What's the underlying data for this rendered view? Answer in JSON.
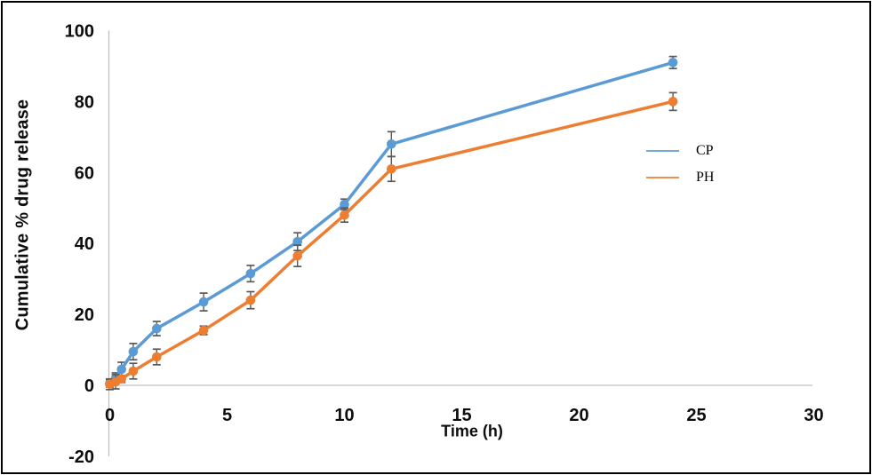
{
  "chart_data": {
    "type": "line",
    "title": "",
    "xlabel": "Time (h)",
    "ylabel": "Cumulative % drug release",
    "x": [
      0,
      0.25,
      0.5,
      1,
      2,
      4,
      6,
      8,
      10,
      12,
      24
    ],
    "series": [
      {
        "name": "CP",
        "color": "#5B9BD5",
        "values": [
          0.5,
          2,
          4.5,
          9.5,
          16,
          23.5,
          31.5,
          40.5,
          51,
          68,
          91
        ],
        "error": [
          1,
          1.5,
          2,
          2.3,
          2,
          2.5,
          2.3,
          2.5,
          1.5,
          3.5,
          1.7
        ]
      },
      {
        "name": "PH",
        "color": "#ED7D31",
        "values": [
          0.3,
          1,
          1.8,
          4,
          8,
          15.5,
          24,
          36.5,
          48,
          61,
          80
        ],
        "error": [
          1.5,
          2,
          1,
          2.2,
          2.2,
          1.2,
          2.4,
          3,
          2,
          3.5,
          2.5
        ]
      }
    ],
    "xlim": [
      0,
      30
    ],
    "ylim": [
      -20,
      100
    ],
    "x_ticks": [
      0,
      5,
      10,
      15,
      20,
      25,
      30
    ],
    "y_ticks": [
      100,
      80,
      60,
      40,
      20,
      0,
      -20
    ],
    "grid": false,
    "legend_position": "right-middle",
    "marker": "circle",
    "error_bars": true,
    "colors": {
      "axis_line": "#C0C0C0",
      "error_bar": "#595959",
      "tick_label": "#0d0d0d"
    }
  },
  "legend": {
    "items": [
      {
        "label": "CP",
        "color": "#5B9BD5"
      },
      {
        "label": "PH",
        "color": "#ED7D31"
      }
    ]
  }
}
